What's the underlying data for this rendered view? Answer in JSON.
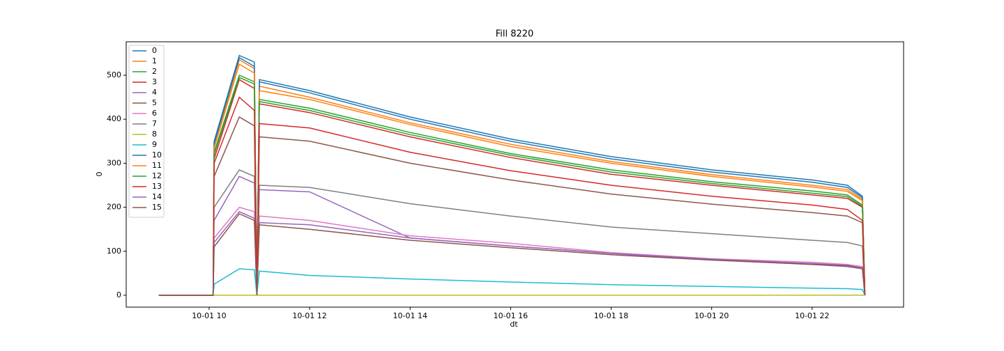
{
  "chart_data": {
    "type": "line",
    "title": "Fill 8220",
    "xlabel": "dt",
    "ylabel": "0",
    "x": [
      9.0,
      10.08,
      10.1,
      10.6,
      10.9,
      10.95,
      11.0,
      12,
      14,
      16,
      18,
      20,
      22,
      22.7,
      23.0,
      23.05
    ],
    "xlim": [
      8.35,
      23.82
    ],
    "xticks": [
      {
        "value": 10,
        "label": "10-01 10"
      },
      {
        "value": 12,
        "label": "10-01 12"
      },
      {
        "value": 14,
        "label": "10-01 14"
      },
      {
        "value": 16,
        "label": "10-01 16"
      },
      {
        "value": 18,
        "label": "10-01 18"
      },
      {
        "value": 20,
        "label": "10-01 20"
      },
      {
        "value": 22,
        "label": "10-01 22"
      }
    ],
    "ylim": [
      -27,
      576
    ],
    "yticks": [
      0,
      100,
      200,
      300,
      400,
      500
    ],
    "grid": false,
    "legend": "upper left",
    "series": [
      {
        "name": "0",
        "color": "#1f77b4",
        "values": [
          0,
          0,
          350,
          545,
          530,
          0,
          490,
          465,
          405,
          355,
          315,
          285,
          262,
          250,
          225,
          0
        ]
      },
      {
        "name": "1",
        "color": "#ff7f0e",
        "values": [
          0,
          0,
          340,
          535,
          515,
          0,
          475,
          450,
          392,
          343,
          304,
          274,
          250,
          240,
          218,
          0
        ]
      },
      {
        "name": "2",
        "color": "#2ca02c",
        "values": [
          0,
          0,
          325,
          500,
          485,
          0,
          445,
          425,
          370,
          322,
          285,
          258,
          237,
          228,
          205,
          0
        ]
      },
      {
        "name": "3",
        "color": "#d62728",
        "values": [
          0,
          0,
          310,
          490,
          470,
          0,
          435,
          415,
          360,
          313,
          275,
          250,
          228,
          220,
          200,
          0
        ]
      },
      {
        "name": "4",
        "color": "#9467bd",
        "values": [
          0,
          0,
          170,
          270,
          255,
          0,
          240,
          235,
          130,
          112,
          95,
          80,
          70,
          65,
          60,
          0
        ]
      },
      {
        "name": "5",
        "color": "#8c564b",
        "values": [
          0,
          0,
          270,
          405,
          385,
          0,
          360,
          350,
          300,
          262,
          230,
          207,
          188,
          180,
          165,
          0
        ]
      },
      {
        "name": "6",
        "color": "#e377c2",
        "values": [
          0,
          0,
          130,
          200,
          190,
          0,
          180,
          170,
          135,
          118,
          97,
          83,
          75,
          70,
          65,
          0
        ]
      },
      {
        "name": "7",
        "color": "#7f7f7f",
        "values": [
          0,
          0,
          200,
          285,
          270,
          0,
          250,
          245,
          208,
          180,
          155,
          140,
          125,
          120,
          112,
          0
        ]
      },
      {
        "name": "8",
        "color": "#bcbd22",
        "values": [
          0,
          0,
          0,
          0,
          0,
          0,
          0,
          0,
          0,
          0,
          0,
          0,
          0,
          0,
          0,
          0
        ]
      },
      {
        "name": "9",
        "color": "#17becf",
        "values": [
          0,
          0,
          25,
          60,
          58,
          0,
          55,
          45,
          37,
          30,
          24,
          20,
          16,
          15,
          13,
          0
        ]
      },
      {
        "name": "10",
        "color": "#1f77b4",
        "values": [
          0,
          0,
          345,
          540,
          520,
          0,
          485,
          460,
          400,
          350,
          310,
          280,
          257,
          245,
          222,
          0
        ]
      },
      {
        "name": "11",
        "color": "#ff7f0e",
        "values": [
          0,
          0,
          335,
          525,
          505,
          0,
          465,
          445,
          388,
          338,
          300,
          270,
          246,
          236,
          215,
          0
        ]
      },
      {
        "name": "12",
        "color": "#2ca02c",
        "values": [
          0,
          0,
          320,
          495,
          480,
          0,
          440,
          420,
          365,
          318,
          280,
          254,
          232,
          224,
          202,
          0
        ]
      },
      {
        "name": "13",
        "color": "#d62728",
        "values": [
          0,
          0,
          300,
          450,
          420,
          0,
          390,
          380,
          325,
          283,
          250,
          225,
          205,
          195,
          170,
          0
        ]
      },
      {
        "name": "14",
        "color": "#9467bd",
        "values": [
          0,
          0,
          120,
          190,
          175,
          0,
          165,
          160,
          130,
          112,
          95,
          82,
          72,
          68,
          62,
          0
        ]
      },
      {
        "name": "15",
        "color": "#8c564b",
        "values": [
          0,
          0,
          110,
          185,
          170,
          0,
          160,
          150,
          125,
          108,
          92,
          80,
          70,
          67,
          62,
          0
        ]
      }
    ]
  }
}
